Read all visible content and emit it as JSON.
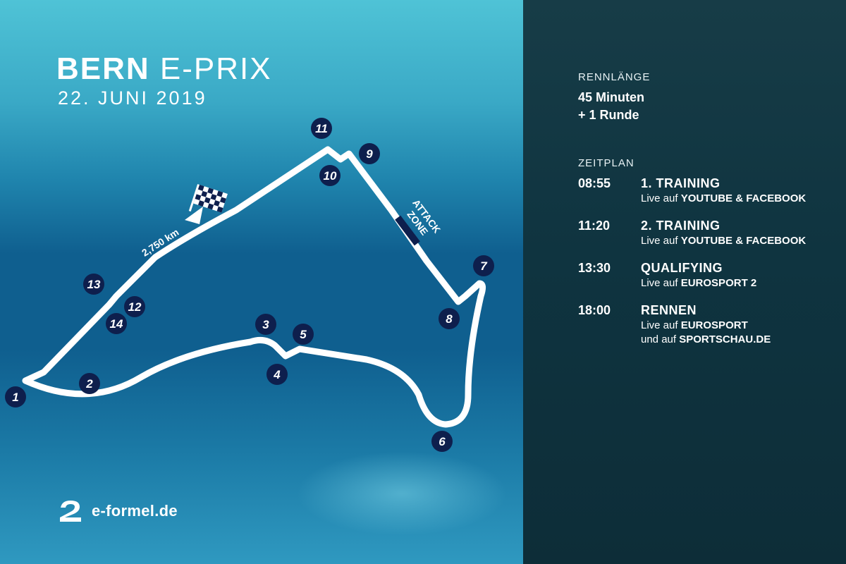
{
  "title": {
    "bold": "BERN",
    "light": "E-PRIX",
    "date": "22. JUNI 2019"
  },
  "track": {
    "distance_label": "2,750 km",
    "attack_zone": [
      "ATTACK",
      "ZONE"
    ],
    "turns": [
      "1",
      "2",
      "3",
      "4",
      "5",
      "6",
      "7",
      "8",
      "9",
      "10",
      "11",
      "12",
      "13",
      "14"
    ]
  },
  "logo": {
    "text": "e-formel.de"
  },
  "info": {
    "race_length_label": "RENNLÄNGE",
    "race_length_line1": "45 Minuten",
    "race_length_line2": "+ 1 Runde",
    "schedule_label": "ZEITPLAN",
    "schedule": [
      {
        "time": "08:55",
        "title": "1. TRAINING",
        "sub_prefix": "Live auf ",
        "sub_bold": "YOUTUBE & FACEBOOK",
        "sub2_prefix": "",
        "sub2_bold": ""
      },
      {
        "time": "11:20",
        "title": "2. TRAINING",
        "sub_prefix": "Live auf ",
        "sub_bold": "YOUTUBE & FACEBOOK",
        "sub2_prefix": "",
        "sub2_bold": ""
      },
      {
        "time": "13:30",
        "title": "QUALIFYING",
        "sub_prefix": "Live auf ",
        "sub_bold": "EUROSPORT 2",
        "sub2_prefix": "",
        "sub2_bold": ""
      },
      {
        "time": "18:00",
        "title": "RENNEN",
        "sub_prefix": "Live auf ",
        "sub_bold": "EUROSPORT",
        "sub2_prefix": "und auf ",
        "sub2_bold": "SPORTSCHAU.DE"
      }
    ]
  },
  "colors": {
    "marker": "#0e1f4d",
    "track": "#ffffff"
  }
}
